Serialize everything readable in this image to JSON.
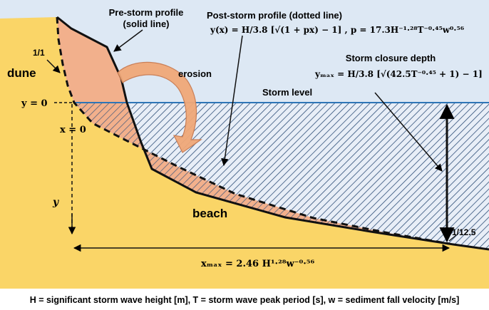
{
  "labels": {
    "pre_storm": [
      "Pre-storm profile",
      "(solid line)"
    ],
    "post_storm": "Post-storm profile (dotted line)",
    "post_storm_formula": "y(x) = H/3.8 [√(1 + px) − 1]  ,  p = 17.3H⁻¹·²⁸T⁻⁰·⁴⁵w⁰·⁵⁶",
    "dune": "dune",
    "slope_top": "1/1",
    "erosion": "erosion",
    "storm_level": "Storm level",
    "closure_title": "Storm closure depth",
    "closure_formula": "yₘₐₓ = H/3.8 [√(42.5T⁻⁰·⁴⁵ + 1) − 1]",
    "y_zero": "y = 0",
    "x_zero": "x = 0",
    "y_axis": "y",
    "beach": "beach",
    "slope_bottom": "1/12.5",
    "xmax_formula": "xₘₐₓ = 2.46 H¹·²⁸w⁻⁰·⁵⁶",
    "legend": "H = significant storm wave height [m], T = storm wave peak period [s], w = sediment fall velocity [m/s]"
  },
  "colors": {
    "sky": "#dde8f4",
    "sand": "#fad567",
    "erosion_fill": "#f2b08c",
    "water_line": "#2e75b6",
    "hatch": "#2f4f78",
    "arrow_fill": "#f0a878",
    "arrow_stroke": "#c87a50"
  }
}
